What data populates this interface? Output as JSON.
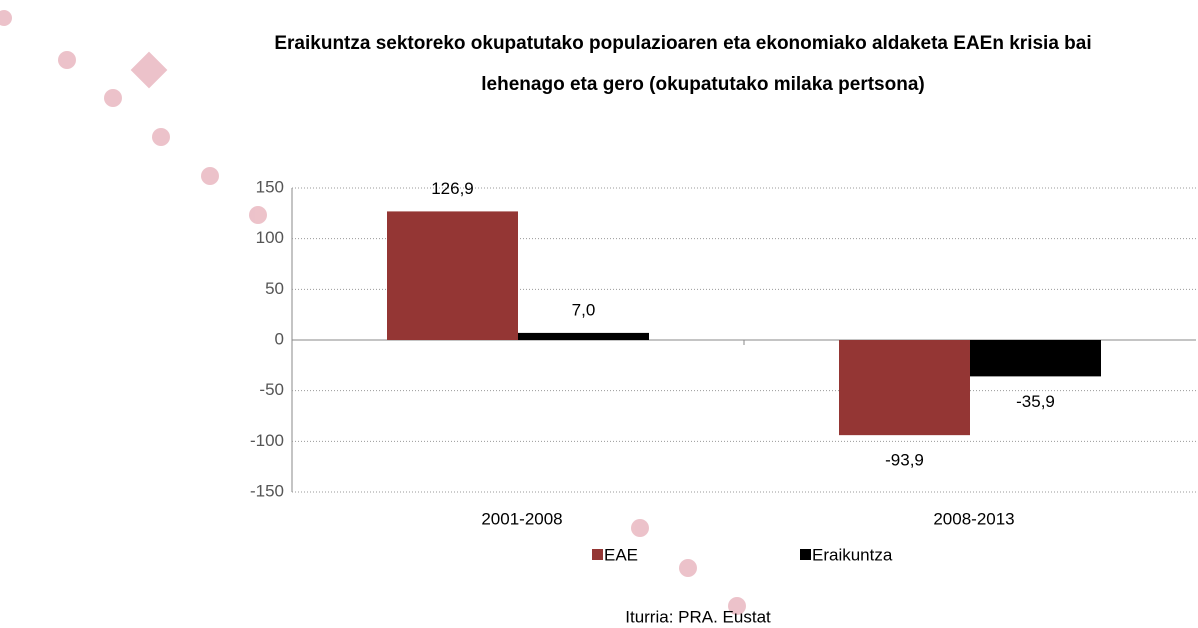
{
  "chart_data": {
    "type": "bar",
    "title": "Eraikuntza sektoreko okupatutako populazioaren eta ekonomiako aldaketa EAEn krisia bai lehenago eta gero (okupatutako milaka pertsona)",
    "categories": [
      "2001-2008",
      "2008-2013"
    ],
    "series": [
      {
        "name": "EAE",
        "color": "#943634",
        "values": [
          126.9,
          -93.9
        ],
        "value_labels": [
          "126,9",
          "-93,9"
        ]
      },
      {
        "name": "Eraikuntza",
        "color": "#000000",
        "values": [
          7.0,
          -35.9
        ],
        "value_labels": [
          "7,0",
          "-35,9"
        ]
      }
    ],
    "ylim": [
      -150,
      150
    ],
    "yticks": [
      -150,
      -100,
      -50,
      0,
      50,
      100,
      150
    ],
    "grid": true,
    "legend": "bottom",
    "source": "Iturria: PRA. Eustat"
  }
}
